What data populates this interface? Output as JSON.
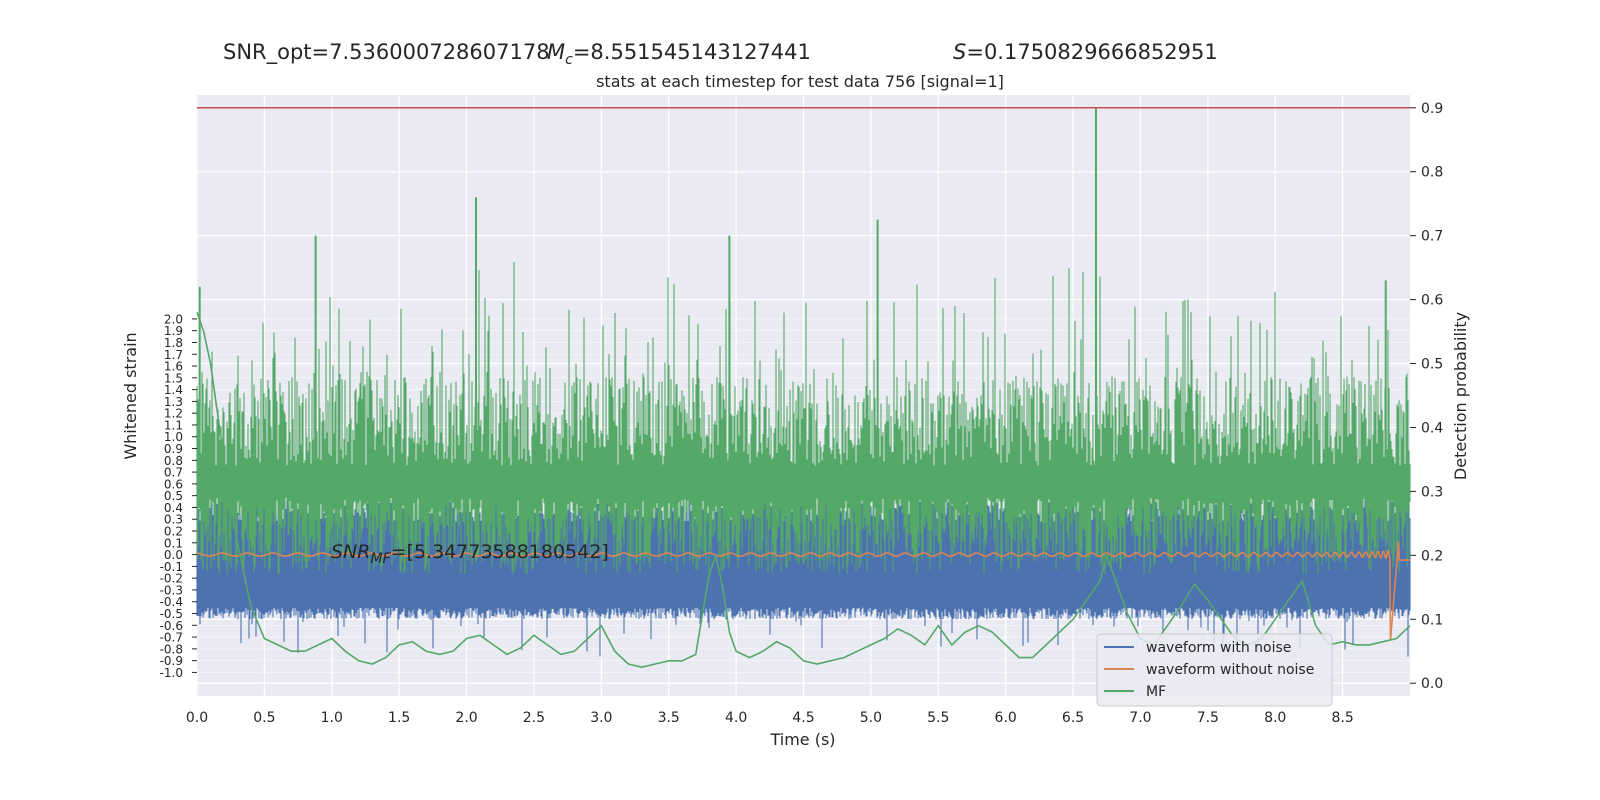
{
  "header": {
    "snr_opt": "SNR_opt=7.536000728607178",
    "mc_symbol": "M",
    "mc_sub": "c",
    "mc_value": "=8.551545143127441",
    "s_symbol": "S",
    "s_value": "=0.1750829666852951",
    "subtitle": "stats at each timestep for test data 756 [signal=1]"
  },
  "colors": {
    "plot_bg": "#eaeaf2",
    "grid": "#ffffff",
    "noise": "#4c72b0",
    "clean": "#dd8452",
    "mf": "#55a868",
    "threshold": "#c44e52"
  },
  "chart_data": {
    "type": "line",
    "xlabel": "Time (s)",
    "ylabel_left": "Whitened strain",
    "ylabel_right": "Detection probability",
    "xlim": [
      0.0,
      9.0
    ],
    "x_ticks": [
      "0.0",
      "0.5",
      "1.0",
      "1.5",
      "2.0",
      "2.5",
      "3.0",
      "3.5",
      "4.0",
      "4.5",
      "5.0",
      "5.5",
      "6.0",
      "6.5",
      "7.0",
      "7.5",
      "8.0",
      "8.5"
    ],
    "left_ylim": [
      -1.2,
      3.9
    ],
    "left_ticks": [
      "-1.0",
      "-0.9",
      "-0.8",
      "-0.7",
      "-0.6",
      "-0.5",
      "-0.4",
      "-0.3",
      "-0.2",
      "-0.1",
      "0.0",
      "0.1",
      "0.2",
      "0.3",
      "0.4",
      "0.5",
      "0.6",
      "0.7",
      "0.8",
      "0.9",
      "1.0",
      "1.1",
      "1.2",
      "1.3",
      "1.4",
      "1.5",
      "1.6",
      "1.7",
      "1.8",
      "1.9",
      "2.0"
    ],
    "right_ylim": [
      -0.02,
      0.92
    ],
    "right_ticks": [
      "0.0",
      "0.1",
      "0.2",
      "0.3",
      "0.4",
      "0.5",
      "0.6",
      "0.7",
      "0.8",
      "0.9"
    ],
    "threshold": 0.9,
    "snr_mf_annotation": {
      "x": 1.0,
      "y": 0.23,
      "prefix": "SNR",
      "sub": "MF",
      "value": "=[5.34773588180542]"
    },
    "legend": {
      "position": "lower-right",
      "entries": [
        "waveform with noise",
        "waveform without noise",
        "MF"
      ]
    },
    "series": [
      {
        "name": "MF",
        "axis": "right",
        "x": [
          0.0,
          0.05,
          0.1,
          0.2,
          0.3,
          0.4,
          0.5,
          0.6,
          0.7,
          0.8,
          0.9,
          1.0,
          1.1,
          1.2,
          1.3,
          1.4,
          1.5,
          1.6,
          1.7,
          1.8,
          1.9,
          2.0,
          2.1,
          2.2,
          2.3,
          2.4,
          2.5,
          2.6,
          2.7,
          2.8,
          2.9,
          3.0,
          3.1,
          3.2,
          3.3,
          3.4,
          3.5,
          3.6,
          3.7,
          3.8,
          3.85,
          3.9,
          3.95,
          4.0,
          4.1,
          4.2,
          4.3,
          4.4,
          4.5,
          4.6,
          4.7,
          4.8,
          4.9,
          5.0,
          5.1,
          5.2,
          5.3,
          5.4,
          5.5,
          5.6,
          5.7,
          5.8,
          5.9,
          6.0,
          6.1,
          6.2,
          6.3,
          6.4,
          6.5,
          6.6,
          6.7,
          6.75,
          6.8,
          6.9,
          7.0,
          7.1,
          7.2,
          7.3,
          7.4,
          7.5,
          7.6,
          7.7,
          7.8,
          7.9,
          8.0,
          8.1,
          8.2,
          8.3,
          8.4,
          8.5,
          8.6,
          8.7,
          8.8,
          8.9,
          9.0
        ],
        "y": [
          0.58,
          0.55,
          0.5,
          0.35,
          0.22,
          0.12,
          0.07,
          0.06,
          0.05,
          0.05,
          0.06,
          0.07,
          0.05,
          0.035,
          0.03,
          0.04,
          0.06,
          0.065,
          0.05,
          0.045,
          0.05,
          0.07,
          0.075,
          0.06,
          0.045,
          0.055,
          0.075,
          0.06,
          0.045,
          0.05,
          0.07,
          0.09,
          0.05,
          0.03,
          0.025,
          0.03,
          0.035,
          0.035,
          0.045,
          0.17,
          0.2,
          0.15,
          0.08,
          0.05,
          0.04,
          0.05,
          0.065,
          0.055,
          0.035,
          0.03,
          0.035,
          0.04,
          0.05,
          0.06,
          0.07,
          0.085,
          0.075,
          0.06,
          0.09,
          0.06,
          0.08,
          0.09,
          0.08,
          0.06,
          0.04,
          0.04,
          0.06,
          0.08,
          0.1,
          0.13,
          0.16,
          0.2,
          0.17,
          0.11,
          0.07,
          0.06,
          0.09,
          0.12,
          0.155,
          0.13,
          0.1,
          0.07,
          0.06,
          0.07,
          0.1,
          0.13,
          0.16,
          0.09,
          0.06,
          0.065,
          0.06,
          0.06,
          0.065,
          0.07,
          0.09
        ]
      },
      {
        "name": "waveform without noise",
        "axis": "left",
        "note": "near-zero chirp, amplitude growing toward merger at ~8.9 s",
        "x_start": 0.0,
        "x_end": 9.0,
        "amplitude_range": [
          -0.8,
          0.2
        ]
      },
      {
        "name": "waveform with noise",
        "axis": "left",
        "note": "dense noisy band, typically between -0.5 and 0.45",
        "x_start": 0.0,
        "x_end": 9.0,
        "amplitude_range": [
          -0.9,
          0.5
        ]
      }
    ],
    "detection_probability_noise": {
      "axis": "right",
      "note": "dense green spiky curve; baseline ~0.2-0.45, spikes up to 0.9",
      "peaks": [
        {
          "x": 0.02,
          "y": 0.62
        },
        {
          "x": 0.88,
          "y": 0.7
        },
        {
          "x": 2.07,
          "y": 0.76
        },
        {
          "x": 3.95,
          "y": 0.7
        },
        {
          "x": 5.05,
          "y": 0.725
        },
        {
          "x": 6.67,
          "y": 0.9
        },
        {
          "x": 8.82,
          "y": 0.63
        }
      ]
    }
  }
}
